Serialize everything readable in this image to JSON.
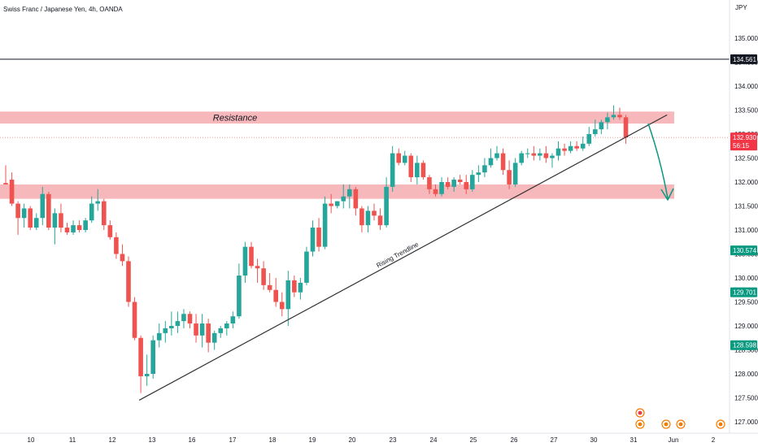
{
  "header": {
    "title": "Swiss Franc / Japanese Yen, 4h, OANDA"
  },
  "chart_data": {
    "type": "candlestick",
    "currency": "JPY",
    "ylim": [
      126.85,
      136.05
    ],
    "y_ticks": [
      127.0,
      127.5,
      128.0,
      128.5,
      129.0,
      129.5,
      130.0,
      130.5,
      131.0,
      131.5,
      132.0,
      132.5,
      133.0,
      133.5,
      134.0,
      134.5,
      135.0
    ],
    "x_ticks": [
      "10",
      "11",
      "12",
      "13",
      "16",
      "17",
      "18",
      "19",
      "20",
      "23",
      "24",
      "25",
      "26",
      "27",
      "30",
      "31",
      "Jun",
      "2"
    ],
    "grid": false,
    "candles": [
      {
        "o": 131.98,
        "h": 132.35,
        "l": 131.95,
        "c": 131.95
      },
      {
        "o": 132.05,
        "h": 132.2,
        "l": 131.5,
        "c": 131.55
      },
      {
        "o": 131.55,
        "h": 131.6,
        "l": 130.9,
        "c": 131.25
      },
      {
        "o": 131.25,
        "h": 131.55,
        "l": 131.05,
        "c": 131.45
      },
      {
        "o": 131.45,
        "h": 131.5,
        "l": 131.0,
        "c": 131.05
      },
      {
        "o": 131.05,
        "h": 131.35,
        "l": 131.0,
        "c": 131.25
      },
      {
        "o": 131.25,
        "h": 131.9,
        "l": 131.1,
        "c": 131.75
      },
      {
        "o": 131.75,
        "h": 131.8,
        "l": 131.0,
        "c": 131.05
      },
      {
        "o": 131.05,
        "h": 131.45,
        "l": 130.7,
        "c": 131.35
      },
      {
        "o": 131.35,
        "h": 131.55,
        "l": 130.95,
        "c": 131.05
      },
      {
        "o": 131.05,
        "h": 131.15,
        "l": 130.9,
        "c": 130.95
      },
      {
        "o": 130.95,
        "h": 131.2,
        "l": 130.9,
        "c": 131.1
      },
      {
        "o": 131.1,
        "h": 131.2,
        "l": 130.95,
        "c": 131.0
      },
      {
        "o": 131.0,
        "h": 131.25,
        "l": 130.95,
        "c": 131.2
      },
      {
        "o": 131.2,
        "h": 131.7,
        "l": 131.15,
        "c": 131.55
      },
      {
        "o": 131.55,
        "h": 131.85,
        "l": 131.4,
        "c": 131.6
      },
      {
        "o": 131.6,
        "h": 131.65,
        "l": 131.0,
        "c": 131.1
      },
      {
        "o": 131.1,
        "h": 131.2,
        "l": 130.8,
        "c": 130.85
      },
      {
        "o": 130.85,
        "h": 130.95,
        "l": 130.4,
        "c": 130.5
      },
      {
        "o": 130.5,
        "h": 130.7,
        "l": 130.25,
        "c": 130.35
      },
      {
        "o": 130.35,
        "h": 130.45,
        "l": 129.4,
        "c": 129.5
      },
      {
        "o": 129.5,
        "h": 129.6,
        "l": 128.7,
        "c": 128.75
      },
      {
        "o": 128.75,
        "h": 128.8,
        "l": 127.6,
        "c": 127.95
      },
      {
        "o": 127.95,
        "h": 128.4,
        "l": 127.75,
        "c": 128.0
      },
      {
        "o": 128.0,
        "h": 128.8,
        "l": 127.9,
        "c": 128.7
      },
      {
        "o": 128.7,
        "h": 129.05,
        "l": 128.55,
        "c": 128.85
      },
      {
        "o": 128.85,
        "h": 129.1,
        "l": 128.65,
        "c": 128.95
      },
      {
        "o": 128.95,
        "h": 129.3,
        "l": 128.8,
        "c": 129.0
      },
      {
        "o": 129.0,
        "h": 129.3,
        "l": 128.85,
        "c": 129.1
      },
      {
        "o": 129.1,
        "h": 129.35,
        "l": 128.95,
        "c": 129.25
      },
      {
        "o": 129.25,
        "h": 129.3,
        "l": 128.95,
        "c": 129.05
      },
      {
        "o": 129.05,
        "h": 129.25,
        "l": 128.65,
        "c": 128.8
      },
      {
        "o": 128.8,
        "h": 129.25,
        "l": 128.55,
        "c": 129.05
      },
      {
        "o": 129.05,
        "h": 129.15,
        "l": 128.45,
        "c": 128.65
      },
      {
        "o": 128.65,
        "h": 128.9,
        "l": 128.5,
        "c": 128.85
      },
      {
        "o": 128.85,
        "h": 129.0,
        "l": 128.75,
        "c": 128.95
      },
      {
        "o": 128.95,
        "h": 129.1,
        "l": 128.8,
        "c": 129.05
      },
      {
        "o": 129.05,
        "h": 129.3,
        "l": 128.95,
        "c": 129.2
      },
      {
        "o": 129.2,
        "h": 130.3,
        "l": 129.15,
        "c": 130.05
      },
      {
        "o": 130.05,
        "h": 130.75,
        "l": 129.9,
        "c": 130.65
      },
      {
        "o": 130.65,
        "h": 130.75,
        "l": 130.2,
        "c": 130.25
      },
      {
        "o": 130.25,
        "h": 130.4,
        "l": 129.9,
        "c": 130.2
      },
      {
        "o": 130.2,
        "h": 130.35,
        "l": 129.75,
        "c": 129.85
      },
      {
        "o": 129.85,
        "h": 130.1,
        "l": 129.7,
        "c": 129.75
      },
      {
        "o": 129.75,
        "h": 130.0,
        "l": 129.4,
        "c": 129.5
      },
      {
        "o": 129.5,
        "h": 129.7,
        "l": 129.2,
        "c": 129.35
      },
      {
        "o": 129.35,
        "h": 130.15,
        "l": 129.0,
        "c": 129.95
      },
      {
        "o": 129.95,
        "h": 130.05,
        "l": 129.6,
        "c": 129.7
      },
      {
        "o": 129.7,
        "h": 130.0,
        "l": 129.55,
        "c": 129.9
      },
      {
        "o": 129.9,
        "h": 130.65,
        "l": 129.85,
        "c": 130.55
      },
      {
        "o": 130.55,
        "h": 131.2,
        "l": 130.45,
        "c": 131.05
      },
      {
        "o": 131.05,
        "h": 131.25,
        "l": 130.55,
        "c": 130.65
      },
      {
        "o": 130.65,
        "h": 131.7,
        "l": 130.6,
        "c": 131.55
      },
      {
        "o": 131.55,
        "h": 131.75,
        "l": 131.35,
        "c": 131.5
      },
      {
        "o": 131.5,
        "h": 131.6,
        "l": 131.45,
        "c": 131.6
      },
      {
        "o": 131.6,
        "h": 131.95,
        "l": 131.45,
        "c": 131.7
      },
      {
        "o": 131.7,
        "h": 131.95,
        "l": 131.45,
        "c": 131.85
      },
      {
        "o": 131.85,
        "h": 131.9,
        "l": 131.3,
        "c": 131.45
      },
      {
        "o": 131.45,
        "h": 131.5,
        "l": 130.95,
        "c": 131.1
      },
      {
        "o": 131.1,
        "h": 131.5,
        "l": 130.95,
        "c": 131.4
      },
      {
        "o": 131.4,
        "h": 131.55,
        "l": 131.2,
        "c": 131.3
      },
      {
        "o": 131.3,
        "h": 131.45,
        "l": 131.0,
        "c": 131.1
      },
      {
        "o": 131.1,
        "h": 132.1,
        "l": 131.05,
        "c": 131.9
      },
      {
        "o": 131.9,
        "h": 132.75,
        "l": 131.8,
        "c": 132.6
      },
      {
        "o": 132.6,
        "h": 132.7,
        "l": 132.35,
        "c": 132.4
      },
      {
        "o": 132.4,
        "h": 132.65,
        "l": 132.35,
        "c": 132.55
      },
      {
        "o": 132.55,
        "h": 132.6,
        "l": 132.0,
        "c": 132.1
      },
      {
        "o": 132.1,
        "h": 132.55,
        "l": 131.95,
        "c": 132.4
      },
      {
        "o": 132.4,
        "h": 132.45,
        "l": 132.05,
        "c": 132.1
      },
      {
        "o": 132.1,
        "h": 132.15,
        "l": 131.75,
        "c": 131.85
      },
      {
        "o": 131.85,
        "h": 131.95,
        "l": 131.7,
        "c": 131.75
      },
      {
        "o": 131.75,
        "h": 132.1,
        "l": 131.7,
        "c": 132.0
      },
      {
        "o": 132.0,
        "h": 132.1,
        "l": 131.85,
        "c": 131.9
      },
      {
        "o": 131.9,
        "h": 132.1,
        "l": 131.8,
        "c": 132.05
      },
      {
        "o": 132.05,
        "h": 132.15,
        "l": 131.95,
        "c": 132.0
      },
      {
        "o": 132.0,
        "h": 132.15,
        "l": 131.75,
        "c": 131.85
      },
      {
        "o": 131.85,
        "h": 132.25,
        "l": 131.8,
        "c": 132.15
      },
      {
        "o": 132.15,
        "h": 132.35,
        "l": 132.0,
        "c": 132.2
      },
      {
        "o": 132.2,
        "h": 132.5,
        "l": 132.1,
        "c": 132.35
      },
      {
        "o": 132.35,
        "h": 132.7,
        "l": 132.3,
        "c": 132.5
      },
      {
        "o": 132.5,
        "h": 132.75,
        "l": 132.45,
        "c": 132.6
      },
      {
        "o": 132.6,
        "h": 132.7,
        "l": 132.15,
        "c": 132.25
      },
      {
        "o": 132.25,
        "h": 132.45,
        "l": 131.85,
        "c": 131.95
      },
      {
        "o": 131.95,
        "h": 132.5,
        "l": 131.9,
        "c": 132.4
      },
      {
        "o": 132.4,
        "h": 132.65,
        "l": 132.35,
        "c": 132.6
      },
      {
        "o": 132.6,
        "h": 132.7,
        "l": 132.5,
        "c": 132.6
      },
      {
        "o": 132.6,
        "h": 132.75,
        "l": 132.45,
        "c": 132.55
      },
      {
        "o": 132.55,
        "h": 132.7,
        "l": 132.45,
        "c": 132.6
      },
      {
        "o": 132.6,
        "h": 132.75,
        "l": 132.4,
        "c": 132.5
      },
      {
        "o": 132.5,
        "h": 132.6,
        "l": 132.3,
        "c": 132.55
      },
      {
        "o": 132.55,
        "h": 132.85,
        "l": 132.45,
        "c": 132.7
      },
      {
        "o": 132.7,
        "h": 132.8,
        "l": 132.55,
        "c": 132.65
      },
      {
        "o": 132.65,
        "h": 132.85,
        "l": 132.6,
        "c": 132.75
      },
      {
        "o": 132.75,
        "h": 132.85,
        "l": 132.65,
        "c": 132.7
      },
      {
        "o": 132.7,
        "h": 132.95,
        "l": 132.65,
        "c": 132.8
      },
      {
        "o": 132.8,
        "h": 133.15,
        "l": 132.75,
        "c": 133.0
      },
      {
        "o": 133.0,
        "h": 133.3,
        "l": 132.95,
        "c": 133.1
      },
      {
        "o": 133.1,
        "h": 133.3,
        "l": 133.0,
        "c": 133.25
      },
      {
        "o": 133.25,
        "h": 133.45,
        "l": 133.1,
        "c": 133.35
      },
      {
        "o": 133.35,
        "h": 133.6,
        "l": 133.3,
        "c": 133.4
      },
      {
        "o": 133.4,
        "h": 133.55,
        "l": 133.3,
        "c": 133.35
      },
      {
        "o": 133.35,
        "h": 133.4,
        "l": 132.8,
        "c": 132.93
      }
    ],
    "zones": [
      {
        "label": "Resistance",
        "from": 133.22,
        "to": 133.47
      },
      {
        "label": "",
        "from": 131.65,
        "to": 131.95
      }
    ],
    "trendline": {
      "label": "Rising Trendline",
      "from": {
        "bar": 22,
        "price": 127.45
      },
      "to": {
        "bar": 104,
        "price": 133.35
      }
    },
    "horizontal_line": {
      "price": 134.561,
      "label": "134.561"
    },
    "price_tags": [
      {
        "price": 134.561,
        "label": "134.561",
        "color": "#131722"
      },
      {
        "price": 132.93,
        "label": "132.930",
        "sublabel": "56:15",
        "color": "#f23645"
      },
      {
        "price": 130.574,
        "label": "130.574",
        "color": "#089981"
      },
      {
        "price": 129.701,
        "label": "129.701",
        "color": "#089981"
      },
      {
        "price": 128.598,
        "label": "128.598",
        "color": "#089981"
      }
    ],
    "colors": {
      "up": "#26a69a",
      "down": "#ef5350",
      "zone": "#f7b8bb",
      "arrow": "#089981",
      "trendline": "#333333"
    }
  }
}
